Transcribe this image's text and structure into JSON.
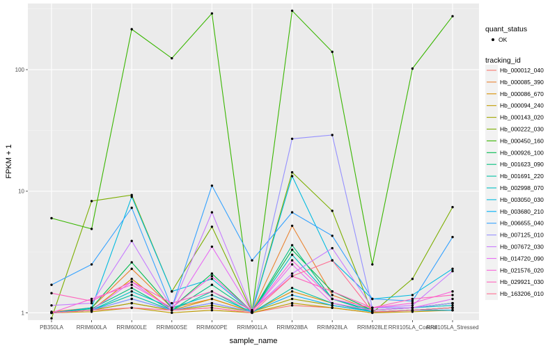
{
  "chart_data": {
    "type": "line",
    "xlabel": "sample_name",
    "ylabel": "FPKM + 1",
    "y_scale": "log10",
    "ylim": [
      0.87,
      350
    ],
    "y_ticks": [
      1,
      10,
      100
    ],
    "y_tick_labels": [
      "1",
      "10",
      "100"
    ],
    "grid": true,
    "legend_position": "right",
    "categories": [
      "PB350LA",
      "RRIM600LA",
      "RRIM600LE",
      "RRIM600SE",
      "RRIM600PE",
      "RRIM901LA",
      "RRIM928BA",
      "RRIM928LA",
      "RRIM928LE",
      "RRII105LA_Control",
      "RRII105LA_Stressed"
    ],
    "shape_legend": {
      "title": "quant_status",
      "items": [
        "OK"
      ]
    },
    "color_legend_title": "tracking_id",
    "series": [
      {
        "name": "Hb_000012_040",
        "color": "#F8766D",
        "values": [
          1.0,
          1.05,
          1.2,
          1.05,
          1.1,
          1.0,
          1.15,
          1.1,
          1.0,
          1.05,
          1.05
        ]
      },
      {
        "name": "Hb_000085_390",
        "color": "#EA8331",
        "values": [
          1.02,
          1.1,
          2.3,
          1.1,
          1.3,
          1.02,
          5.2,
          1.4,
          1.05,
          1.1,
          1.2
        ]
      },
      {
        "name": "Hb_000086_670",
        "color": "#D89000",
        "values": [
          1.0,
          1.05,
          1.9,
          1.05,
          1.3,
          1.02,
          1.5,
          1.2,
          1.02,
          1.05,
          1.1
        ]
      },
      {
        "name": "Hb_000094_240",
        "color": "#C09B00",
        "values": [
          1.0,
          1.02,
          1.1,
          1.0,
          1.05,
          1.0,
          1.2,
          1.1,
          1.0,
          1.02,
          1.05
        ]
      },
      {
        "name": "Hb_000143_020",
        "color": "#A3A500",
        "values": [
          1.0,
          1.05,
          1.2,
          1.05,
          1.15,
          1.02,
          1.3,
          1.15,
          1.02,
          1.05,
          1.1
        ]
      },
      {
        "name": "Hb_000222_030",
        "color": "#7CAE00",
        "values": [
          0.9,
          8.3,
          9.3,
          1.5,
          5.1,
          1.02,
          14.3,
          6.9,
          1.0,
          1.9,
          7.4
        ]
      },
      {
        "name": "Hb_000450_160",
        "color": "#39B600",
        "values": [
          6.0,
          4.9,
          215,
          124,
          290,
          1.02,
          305,
          140,
          2.5,
          102,
          275
        ]
      },
      {
        "name": "Hb_000926_100",
        "color": "#00BB4E",
        "values": [
          1.0,
          1.1,
          2.6,
          1.1,
          2.1,
          1.02,
          3.3,
          1.5,
          1.05,
          1.1,
          1.2
        ]
      },
      {
        "name": "Hb_001623_090",
        "color": "#00BF7D",
        "values": [
          1.0,
          1.08,
          1.6,
          1.05,
          1.7,
          1.02,
          3.6,
          1.3,
          1.02,
          1.05,
          1.1
        ]
      },
      {
        "name": "Hb_001691_220",
        "color": "#00C1A3",
        "values": [
          1.0,
          1.05,
          1.4,
          1.05,
          1.5,
          1.0,
          1.6,
          1.2,
          1.02,
          1.05,
          1.1
        ]
      },
      {
        "name": "Hb_002998_070",
        "color": "#00BFC4",
        "values": [
          1.0,
          1.05,
          1.5,
          1.1,
          1.4,
          1.02,
          3.0,
          1.3,
          1.05,
          1.1,
          1.15
        ]
      },
      {
        "name": "Hb_003050_030",
        "color": "#00BAE0",
        "values": [
          1.0,
          1.1,
          9.0,
          1.5,
          1.9,
          1.02,
          13.3,
          2.7,
          1.3,
          1.4,
          2.3
        ]
      },
      {
        "name": "Hb_003680_210",
        "color": "#00B0F6",
        "values": [
          1.0,
          1.05,
          1.3,
          1.05,
          1.2,
          1.02,
          1.4,
          1.15,
          1.02,
          1.05,
          1.05
        ]
      },
      {
        "name": "Hb_006655_040",
        "color": "#35A2FF",
        "values": [
          1.7,
          2.5,
          7.3,
          1.1,
          11.1,
          2.7,
          6.7,
          4.3,
          1.3,
          1.25,
          4.2
        ]
      },
      {
        "name": "Hb_007125_010",
        "color": "#9590FF",
        "values": [
          1.0,
          1.05,
          1.3,
          1.05,
          1.2,
          1.02,
          27,
          29,
          1.1,
          1.1,
          1.2
        ]
      },
      {
        "name": "Hb_007672_030",
        "color": "#C77CFF",
        "values": [
          1.15,
          1.2,
          3.9,
          1.1,
          6.7,
          1.05,
          2.1,
          3.4,
          1.1,
          1.15,
          2.2
        ]
      },
      {
        "name": "Hb_014720_090",
        "color": "#E76BF3",
        "values": [
          1.0,
          1.05,
          1.8,
          1.05,
          3.5,
          1.02,
          2.5,
          1.2,
          1.05,
          1.1,
          1.3
        ]
      },
      {
        "name": "Hb_021576_020",
        "color": "#FA62DB",
        "values": [
          1.0,
          1.3,
          1.7,
          1.1,
          2.0,
          1.02,
          2.7,
          1.3,
          1.1,
          1.2,
          1.5
        ]
      },
      {
        "name": "Hb_029921_030",
        "color": "#FF62BC",
        "values": [
          1.45,
          1.25,
          1.8,
          1.2,
          1.5,
          1.05,
          2.0,
          1.5,
          1.1,
          1.3,
          1.4
        ]
      },
      {
        "name": "Hb_163206_010",
        "color": "#FF6C91",
        "values": [
          1.0,
          1.05,
          1.1,
          1.05,
          1.1,
          1.0,
          2.0,
          2.7,
          1.02,
          1.05,
          1.1
        ]
      }
    ]
  }
}
